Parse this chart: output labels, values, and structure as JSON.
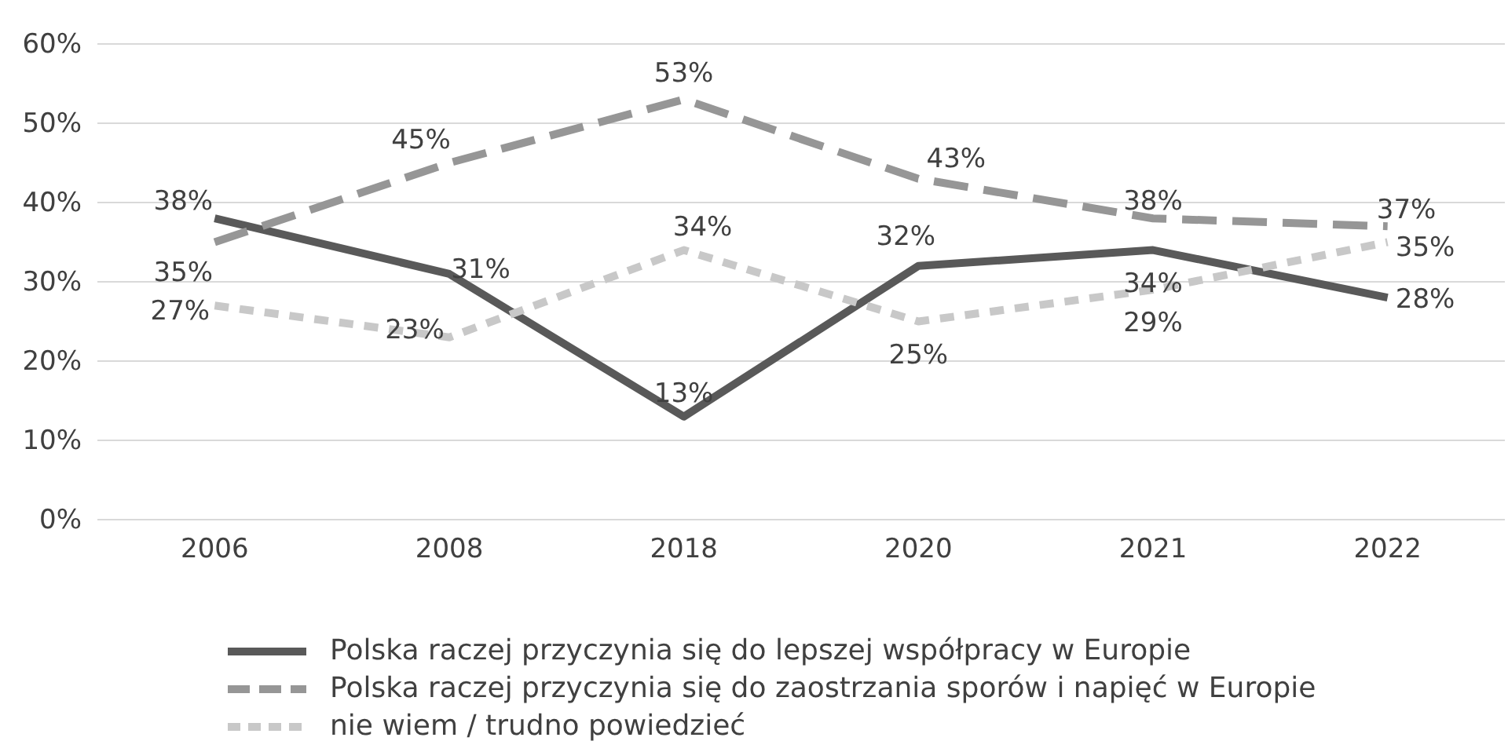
{
  "chart_data": {
    "type": "line",
    "categories": [
      "2006",
      "2008",
      "2018",
      "2020",
      "2021",
      "2022"
    ],
    "ylim": [
      0,
      60
    ],
    "yticks": [
      {
        "value": 0,
        "label": "0%"
      },
      {
        "value": 10,
        "label": "10%"
      },
      {
        "value": 20,
        "label": "20%"
      },
      {
        "value": 30,
        "label": "30%"
      },
      {
        "value": 40,
        "label": "40%"
      },
      {
        "value": 50,
        "label": "50%"
      },
      {
        "value": 60,
        "label": "60%"
      }
    ],
    "grid": "y",
    "legend": "bottom",
    "series": [
      {
        "name": "Polska raczej przyczynia się do lepszej współpracy w Europie",
        "color": "#595959",
        "line_style": "solid",
        "values": [
          38,
          31,
          13,
          32,
          34,
          28
        ],
        "value_labels": [
          "38%",
          "31%",
          "13%",
          "32%",
          "34%",
          "28%"
        ]
      },
      {
        "name": "Polska raczej przyczynia się do zaostrzania sporów i napięć w Europie",
        "color": "#969696",
        "line_style": "dashed",
        "values": [
          35,
          45,
          53,
          43,
          38,
          37
        ],
        "value_labels": [
          "35%",
          "45%",
          "53%",
          "43%",
          "38%",
          "37%"
        ]
      },
      {
        "name": "nie wiem / trudno powiedzieć",
        "color": "#c8c8c8",
        "line_style": "dotted",
        "values": [
          27,
          23,
          34,
          25,
          29,
          35
        ],
        "value_labels": [
          "27%",
          "23%",
          "34%",
          "25%",
          "29%",
          "35%"
        ]
      }
    ]
  }
}
